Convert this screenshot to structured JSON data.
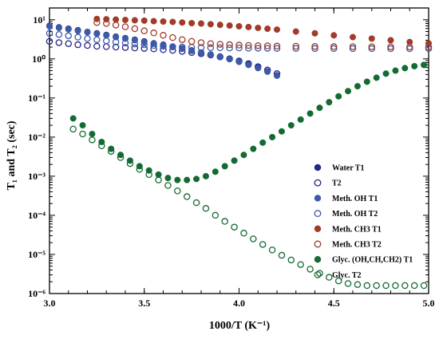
{
  "chart_data": {
    "type": "scatter",
    "xlabel": "1000/T (K⁻¹)",
    "ylabel": "T₁ and T₂ (sec)",
    "xlim": [
      3.0,
      5.0
    ],
    "ylim": [
      1e-06,
      20
    ],
    "yscale": "log",
    "x_ticks": [
      "3.0",
      "3.5",
      "4.0",
      "4.5",
      "5.0"
    ],
    "y_ticks": [
      "10⁻⁶",
      "10⁻⁵",
      "10⁻⁴",
      "10⁻³",
      "10⁻²",
      "10⁻¹",
      "10⁰",
      "10¹"
    ],
    "legend_position": "lower-right",
    "series": [
      {
        "name": "Water T1",
        "color": "#24248a",
        "filled": true,
        "x": [
          3.0,
          3.05,
          3.1,
          3.15,
          3.2,
          3.25,
          3.3,
          3.35,
          3.4,
          3.45,
          3.5,
          3.55,
          3.6,
          3.65,
          3.7,
          3.75,
          3.8,
          3.85,
          3.9,
          3.95,
          4.0,
          4.05,
          4.1,
          4.15,
          4.2
        ],
        "y": [
          7.0,
          6.4,
          5.9,
          5.4,
          4.9,
          4.5,
          4.1,
          3.7,
          3.4,
          3.1,
          2.8,
          2.5,
          2.3,
          2.05,
          1.85,
          1.65,
          1.45,
          1.3,
          1.15,
          1.0,
          0.85,
          0.72,
          0.6,
          0.48,
          0.38
        ]
      },
      {
        "name": "T2",
        "color": "#24248a",
        "filled": false,
        "x": [
          3.0,
          3.05,
          3.1,
          3.15,
          3.2,
          3.25,
          3.3,
          3.35,
          3.4,
          3.45,
          3.5,
          3.55,
          3.6,
          3.65,
          3.7,
          3.75,
          3.8,
          3.85,
          3.9,
          3.95,
          4.0,
          4.05,
          4.1,
          4.15,
          4.2
        ],
        "y": [
          2.8,
          2.6,
          2.45,
          2.3,
          2.2,
          2.1,
          2.05,
          2.0,
          1.95,
          1.9,
          1.85,
          1.8,
          1.72,
          1.65,
          1.55,
          1.45,
          1.35,
          1.25,
          1.12,
          1.0,
          0.88,
          0.75,
          0.63,
          0.52,
          0.42
        ]
      },
      {
        "name": "Meth. OH T1",
        "color": "#3d5aa8",
        "filled": true,
        "x": [
          3.0,
          3.05,
          3.1,
          3.15,
          3.2,
          3.25,
          3.3,
          3.35,
          3.4,
          3.45,
          3.5,
          3.55,
          3.6,
          3.65,
          3.7,
          3.75,
          3.8,
          3.85,
          3.9,
          3.95,
          4.0,
          4.05,
          4.1,
          4.15,
          4.2
        ],
        "y": [
          6.8,
          6.2,
          5.7,
          5.2,
          4.8,
          4.4,
          4.0,
          3.6,
          3.3,
          3.0,
          2.7,
          2.45,
          2.2,
          2.0,
          1.8,
          1.6,
          1.42,
          1.27,
          1.12,
          0.98,
          0.84,
          0.7,
          0.58,
          0.47,
          0.37
        ]
      },
      {
        "name": "Meth. OH T2",
        "color": "#3d5aa8",
        "filled": false,
        "x": [
          3.0,
          3.05,
          3.1,
          3.15,
          3.2,
          3.25,
          3.3,
          3.35,
          3.4,
          3.45,
          3.5,
          3.55,
          3.6,
          3.65,
          3.7,
          3.75,
          3.8,
          3.85,
          3.9,
          3.95,
          4.0,
          4.05,
          4.1,
          4.15,
          4.2,
          4.3,
          4.4,
          4.5,
          4.6,
          4.7,
          4.8,
          4.9,
          5.0
        ],
        "y": [
          4.5,
          4.2,
          3.9,
          3.6,
          3.3,
          3.1,
          2.9,
          2.7,
          2.55,
          2.4,
          2.3,
          2.2,
          2.1,
          2.05,
          2.0,
          1.98,
          1.95,
          1.93,
          1.92,
          1.9,
          1.9,
          1.88,
          1.87,
          1.86,
          1.85,
          1.85,
          1.84,
          1.84,
          1.83,
          1.83,
          1.82,
          1.82,
          1.82
        ]
      },
      {
        "name": "Meth. CH3 T1",
        "color": "#a33b2a",
        "filled": true,
        "x": [
          3.25,
          3.3,
          3.35,
          3.4,
          3.45,
          3.5,
          3.55,
          3.6,
          3.65,
          3.7,
          3.75,
          3.8,
          3.85,
          3.9,
          3.95,
          4.0,
          4.05,
          4.1,
          4.15,
          4.2,
          4.3,
          4.4,
          4.5,
          4.6,
          4.7,
          4.8,
          4.9,
          5.0
        ],
        "y": [
          10.5,
          10.3,
          10.1,
          9.9,
          9.7,
          9.5,
          9.2,
          9.0,
          8.8,
          8.5,
          8.2,
          8.0,
          7.7,
          7.4,
          7.1,
          6.8,
          6.5,
          6.2,
          5.9,
          5.6,
          5.0,
          4.5,
          4.0,
          3.6,
          3.3,
          3.0,
          2.7,
          2.5
        ]
      },
      {
        "name": "Meth. CH3 T2",
        "color": "#a33b2a",
        "filled": false,
        "x": [
          3.25,
          3.3,
          3.35,
          3.4,
          3.45,
          3.5,
          3.55,
          3.6,
          3.65,
          3.7,
          3.75,
          3.8,
          3.85,
          3.9,
          3.95,
          4.0,
          4.05,
          4.1,
          4.15,
          4.2,
          4.3,
          4.4,
          4.5,
          4.6,
          4.7,
          4.8,
          4.9,
          5.0
        ],
        "y": [
          8.5,
          8.0,
          7.3,
          6.6,
          5.9,
          5.2,
          4.6,
          4.0,
          3.5,
          3.1,
          2.8,
          2.6,
          2.45,
          2.35,
          2.3,
          2.25,
          2.2,
          2.18,
          2.15,
          2.12,
          2.1,
          2.08,
          2.06,
          2.05,
          2.04,
          2.03,
          2.02,
          2.0
        ]
      },
      {
        "name": "Glyc. (OH,CH,CH2) T1",
        "color": "#146b32",
        "filled": true,
        "x": [
          3.125,
          3.175,
          3.225,
          3.275,
          3.325,
          3.375,
          3.425,
          3.475,
          3.525,
          3.575,
          3.625,
          3.675,
          3.725,
          3.775,
          3.825,
          3.875,
          3.925,
          3.975,
          4.025,
          4.075,
          4.125,
          4.175,
          4.225,
          4.275,
          4.325,
          4.375,
          4.425,
          4.475,
          4.525,
          4.575,
          4.625,
          4.675,
          4.725,
          4.775,
          4.825,
          4.875,
          4.925,
          4.975
        ],
        "y": [
          0.03,
          0.02,
          0.012,
          0.0075,
          0.005,
          0.0035,
          0.0025,
          0.0018,
          0.0014,
          0.0011,
          0.0009,
          0.0008,
          0.0008,
          0.00085,
          0.001,
          0.0013,
          0.0018,
          0.0025,
          0.0035,
          0.005,
          0.0072,
          0.01,
          0.014,
          0.02,
          0.028,
          0.04,
          0.056,
          0.078,
          0.11,
          0.15,
          0.2,
          0.26,
          0.33,
          0.42,
          0.5,
          0.58,
          0.65,
          0.7
        ]
      },
      {
        "name": "Glyc. T2",
        "color": "#146b32",
        "filled": false,
        "x": [
          3.125,
          3.175,
          3.225,
          3.275,
          3.325,
          3.375,
          3.425,
          3.475,
          3.525,
          3.575,
          3.625,
          3.675,
          3.725,
          3.775,
          3.825,
          3.875,
          3.925,
          3.975,
          4.025,
          4.075,
          4.125,
          4.175,
          4.225,
          4.275,
          4.325,
          4.375,
          4.425,
          4.475,
          4.525,
          4.575,
          4.625,
          4.675,
          4.725,
          4.775,
          4.825,
          4.875,
          4.925,
          4.975
        ],
        "y": [
          0.016,
          0.012,
          0.0085,
          0.006,
          0.0043,
          0.003,
          0.0021,
          0.0015,
          0.0011,
          0.0008,
          0.00058,
          0.00042,
          0.0003,
          0.00021,
          0.00015,
          0.0001,
          7e-05,
          5e-05,
          3.5e-05,
          2.5e-05,
          1.8e-05,
          1.3e-05,
          9.5e-06,
          7.2e-06,
          5.5e-06,
          4.2e-06,
          3.3e-06,
          2.6e-06,
          2.1e-06,
          1.8e-06,
          1.7e-06,
          1.6e-06,
          1.6e-06,
          1.6e-06,
          1.6e-06,
          1.6e-06,
          1.6e-06,
          1.6e-06
        ]
      }
    ],
    "legend": [
      {
        "label": "Water T1",
        "color": "#24248a",
        "filled": true
      },
      {
        "label": "T2",
        "color": "#24248a",
        "filled": false
      },
      {
        "label": "Meth. OH T1",
        "color": "#3d5aa8",
        "filled": true
      },
      {
        "label": "Meth. OH T2",
        "color": "#3d5aa8",
        "filled": false
      },
      {
        "label": "Meth.  CH3 T1",
        "color": "#a33b2a",
        "filled": true
      },
      {
        "label": "Meth. CH3 T2",
        "color": "#a33b2a",
        "filled": false
      },
      {
        "label": "Glyc. (OH,CH,CH2) T1",
        "color": "#146b32",
        "filled": true
      },
      {
        "label": "Glyc. T2",
        "color": "#146b32",
        "filled": false
      }
    ]
  }
}
